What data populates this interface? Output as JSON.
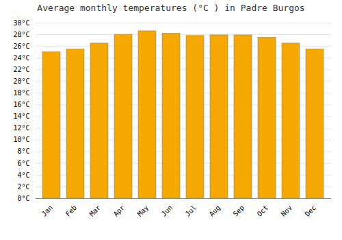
{
  "chart_data": {
    "type": "bar",
    "title": "Average monthly temperatures (°C ) in Padre Burgos",
    "categories": [
      "Jan",
      "Feb",
      "Mar",
      "Apr",
      "May",
      "Jun",
      "Jul",
      "Aug",
      "Sep",
      "Oct",
      "Nov",
      "Dec"
    ],
    "values": [
      25.0,
      25.5,
      26.5,
      28.0,
      28.6,
      28.2,
      27.8,
      27.9,
      27.9,
      27.5,
      26.5,
      25.5
    ],
    "color": "#F5A800",
    "ylim": [
      0,
      30
    ],
    "yticks": [
      {
        "value": 0,
        "label": "0°C"
      },
      {
        "value": 2,
        "label": "2°C"
      },
      {
        "value": 4,
        "label": "4°C"
      },
      {
        "value": 6,
        "label": "6°C"
      },
      {
        "value": 8,
        "label": "8°C"
      },
      {
        "value": 10,
        "label": "10°C"
      },
      {
        "value": 12,
        "label": "12°C"
      },
      {
        "value": 14,
        "label": "14°C"
      },
      {
        "value": 16,
        "label": "16°C"
      },
      {
        "value": 18,
        "label": "18°C"
      },
      {
        "value": 20,
        "label": "20°C"
      },
      {
        "value": 22,
        "label": "22°C"
      },
      {
        "value": 24,
        "label": "24°C"
      },
      {
        "value": 26,
        "label": "26°C"
      },
      {
        "value": 28,
        "label": "28°C"
      },
      {
        "value": 30,
        "label": "30°C"
      }
    ],
    "grid": true
  }
}
